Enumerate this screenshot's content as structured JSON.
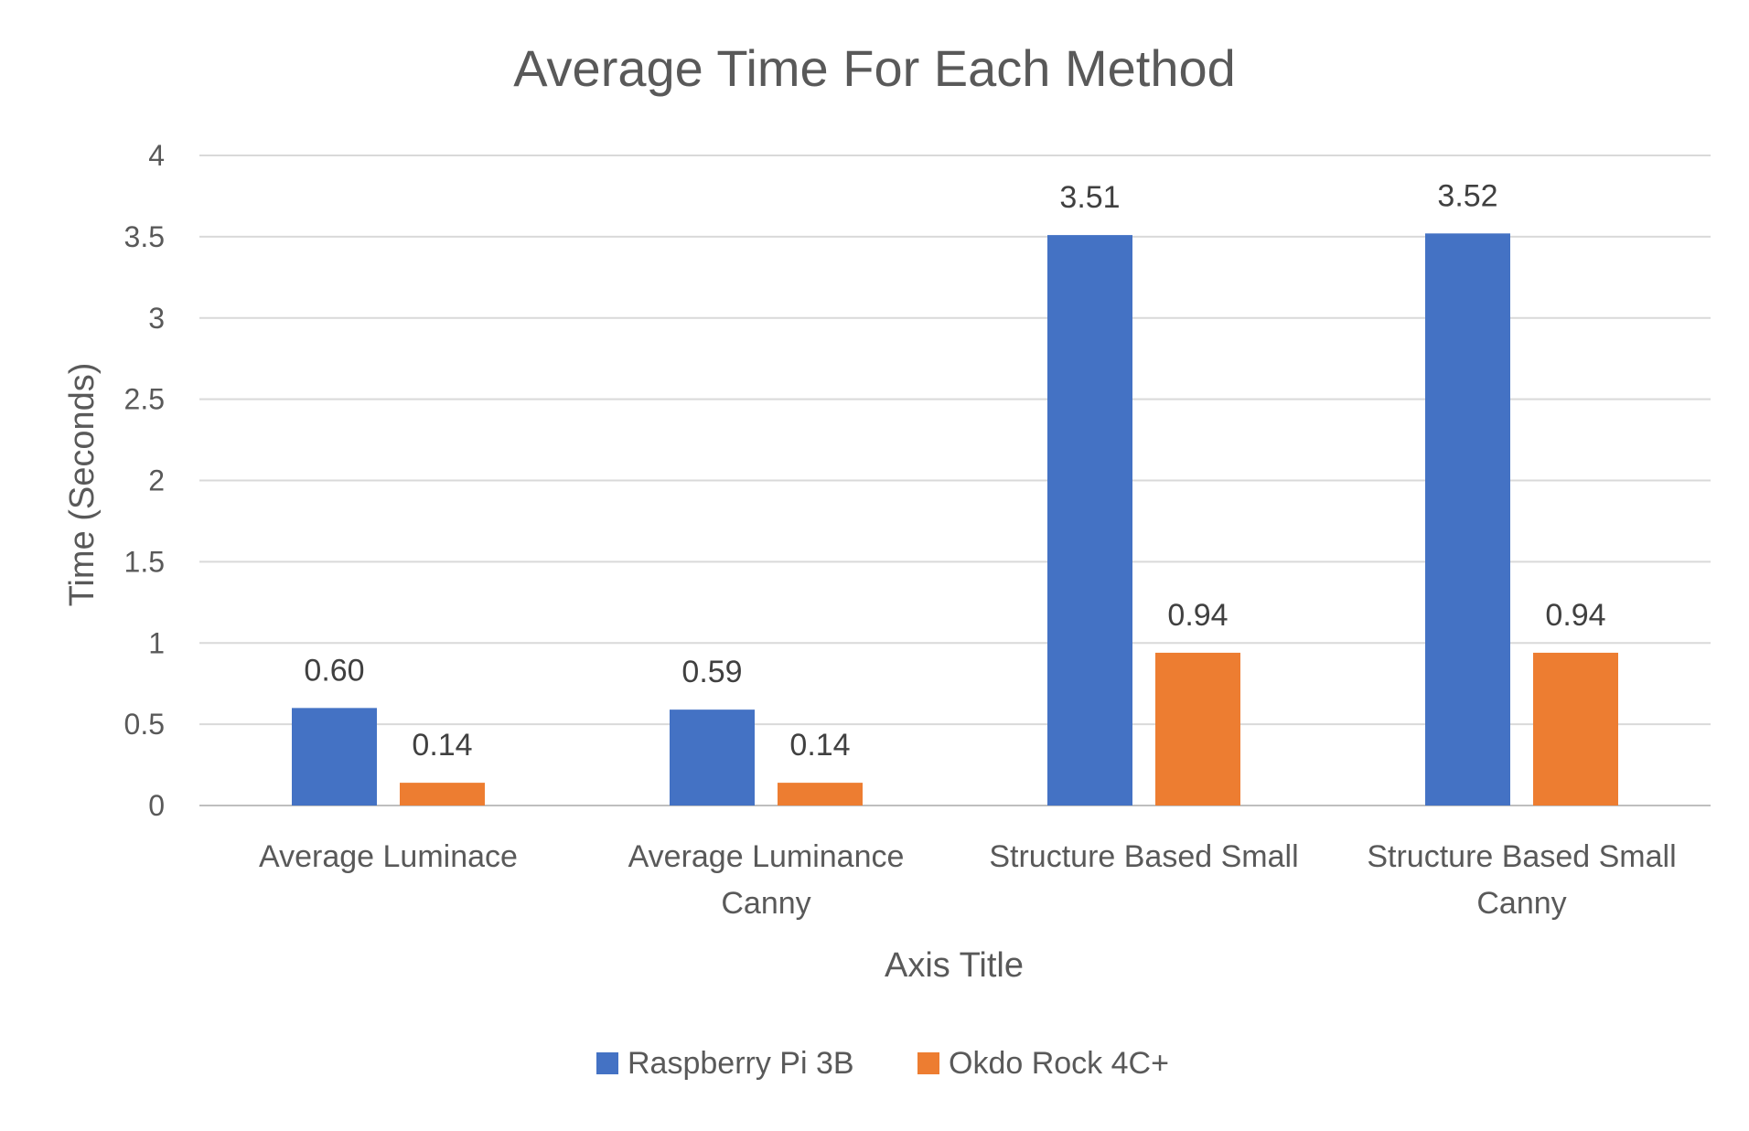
{
  "chart_data": {
    "type": "bar",
    "title": "Average Time For Each Method",
    "xlabel": "Axis Title",
    "ylabel": "Time (Seconds)",
    "ylim": [
      0,
      4
    ],
    "yticks": [
      0,
      0.5,
      1,
      1.5,
      2,
      2.5,
      3,
      3.5,
      4
    ],
    "grid": true,
    "legend_position": "bottom",
    "categories": [
      [
        "Average Luminace"
      ],
      [
        "Average Luminance",
        "Canny"
      ],
      [
        "Structure Based Small"
      ],
      [
        "Structure Based Small",
        "Canny"
      ]
    ],
    "series": [
      {
        "name": "Raspberry Pi 3B",
        "color": "#4472C4",
        "values": [
          0.6,
          0.59,
          3.51,
          3.52
        ],
        "labels": [
          "0.60",
          "0.59",
          "3.51",
          "3.52"
        ]
      },
      {
        "name": "Okdo Rock 4C+",
        "color": "#ED7D31",
        "values": [
          0.14,
          0.14,
          0.94,
          0.94
        ],
        "labels": [
          "0.14",
          "0.14",
          "0.94",
          "0.94"
        ]
      }
    ]
  }
}
